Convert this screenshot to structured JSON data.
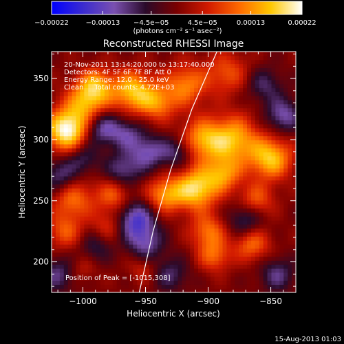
{
  "chart_data": {
    "type": "heatmap",
    "title": "Reconstructed RHESSI Image",
    "xlabel": "Heliocentric X (arcsec)",
    "ylabel": "Heliocentric Y (arcsec)",
    "xlim": [
      -1025,
      -830
    ],
    "ylim": [
      175,
      372
    ],
    "xticks": [
      -1000,
      -950,
      -900,
      -850
    ],
    "xtick_labels": [
      "−1000",
      "−950",
      "−900",
      "−850"
    ],
    "yticks": [
      200,
      250,
      300,
      350
    ],
    "ytick_labels": [
      "200",
      "250",
      "300",
      "350"
    ],
    "colorbar": {
      "ticks": [
        "−0.00022",
        "−0.00013",
        "−4.5e−05",
        "4.5e−05",
        "0.00013",
        "0.00022"
      ],
      "tick_values": [
        -0.00022,
        -0.00013,
        -4.5e-05,
        4.5e-05,
        0.00013,
        0.00022
      ],
      "range": [
        -0.00022,
        0.00022
      ],
      "unit": "(photons cm⁻² s⁻¹ asec⁻²)",
      "colormap": [
        "#0000ff",
        "#3a2bd0",
        "#7a50b0",
        "#2a0a2a",
        "#7a0000",
        "#d21a00",
        "#ff6a00",
        "#ffc800",
        "#ffffff"
      ]
    },
    "info_lines": [
      "20-Nov-2011 13:14:20.000 to 13:17:40.000",
      "Detectors: 4F 5F 6F 7F 8F  Att 0",
      "Energy Range: 12.0 - 25.0 keV",
      "Clean     Total counts: 4.72E+03"
    ],
    "peak_label": "Position of Peak = [-1015,308]",
    "limb": [
      [
        -955,
        175
      ],
      [
        -944,
        225
      ],
      [
        -930,
        275
      ],
      [
        -913,
        325
      ],
      [
        -893,
        372
      ]
    ],
    "blobs": [
      {
        "x": -1013,
        "y": 308,
        "v": 1.0,
        "r": 12
      },
      {
        "x": -997,
        "y": 330,
        "v": 0.6,
        "r": 12
      },
      {
        "x": -990,
        "y": 345,
        "v": 0.55,
        "r": 10
      },
      {
        "x": -960,
        "y": 340,
        "v": 0.75,
        "r": 12
      },
      {
        "x": -940,
        "y": 330,
        "v": 0.5,
        "r": 10
      },
      {
        "x": -918,
        "y": 345,
        "v": 0.55,
        "r": 12
      },
      {
        "x": -885,
        "y": 355,
        "v": 0.4,
        "r": 12
      },
      {
        "x": -905,
        "y": 300,
        "v": 0.6,
        "r": 12
      },
      {
        "x": -880,
        "y": 300,
        "v": 0.7,
        "r": 14
      },
      {
        "x": -850,
        "y": 285,
        "v": 0.75,
        "r": 12
      },
      {
        "x": -910,
        "y": 260,
        "v": 0.85,
        "r": 12
      },
      {
        "x": -935,
        "y": 255,
        "v": 0.6,
        "r": 10
      },
      {
        "x": -888,
        "y": 272,
        "v": 0.55,
        "r": 10
      },
      {
        "x": -862,
        "y": 250,
        "v": 0.45,
        "r": 10
      },
      {
        "x": -975,
        "y": 255,
        "v": 0.45,
        "r": 10
      },
      {
        "x": -1008,
        "y": 252,
        "v": 0.5,
        "r": 12
      },
      {
        "x": -1015,
        "y": 225,
        "v": 0.4,
        "r": 10
      },
      {
        "x": -980,
        "y": 230,
        "v": 0.3,
        "r": 9
      },
      {
        "x": -900,
        "y": 225,
        "v": 0.5,
        "r": 10
      },
      {
        "x": -865,
        "y": 215,
        "v": 0.5,
        "r": 10
      },
      {
        "x": -895,
        "y": 205,
        "v": 0.45,
        "r": 9
      },
      {
        "x": -1000,
        "y": 195,
        "v": 0.2,
        "r": 8
      },
      {
        "x": -952,
        "y": 195,
        "v": 0.25,
        "r": 8
      },
      {
        "x": -985,
        "y": 310,
        "v": -0.55,
        "r": 10
      },
      {
        "x": -965,
        "y": 305,
        "v": -0.4,
        "r": 9
      },
      {
        "x": -948,
        "y": 290,
        "v": -0.5,
        "r": 10
      },
      {
        "x": -925,
        "y": 290,
        "v": -0.4,
        "r": 9
      },
      {
        "x": -968,
        "y": 275,
        "v": -0.45,
        "r": 10
      },
      {
        "x": -1018,
        "y": 270,
        "v": -0.45,
        "r": 10
      },
      {
        "x": -958,
        "y": 235,
        "v": -0.65,
        "r": 11
      },
      {
        "x": -950,
        "y": 215,
        "v": -0.45,
        "r": 10
      },
      {
        "x": -870,
        "y": 235,
        "v": -0.45,
        "r": 10
      },
      {
        "x": -840,
        "y": 320,
        "v": -0.5,
        "r": 10
      },
      {
        "x": -855,
        "y": 345,
        "v": -0.35,
        "r": 10
      },
      {
        "x": -1000,
        "y": 285,
        "v": -0.35,
        "r": 9
      },
      {
        "x": -1020,
        "y": 190,
        "v": -0.4,
        "r": 10
      },
      {
        "x": -930,
        "y": 190,
        "v": -0.35,
        "r": 10
      },
      {
        "x": -845,
        "y": 190,
        "v": -0.4,
        "r": 10
      },
      {
        "x": -990,
        "y": 212,
        "v": -0.3,
        "r": 9
      }
    ]
  },
  "footer": {
    "timestamp": "15-Aug-2013 01:03"
  }
}
